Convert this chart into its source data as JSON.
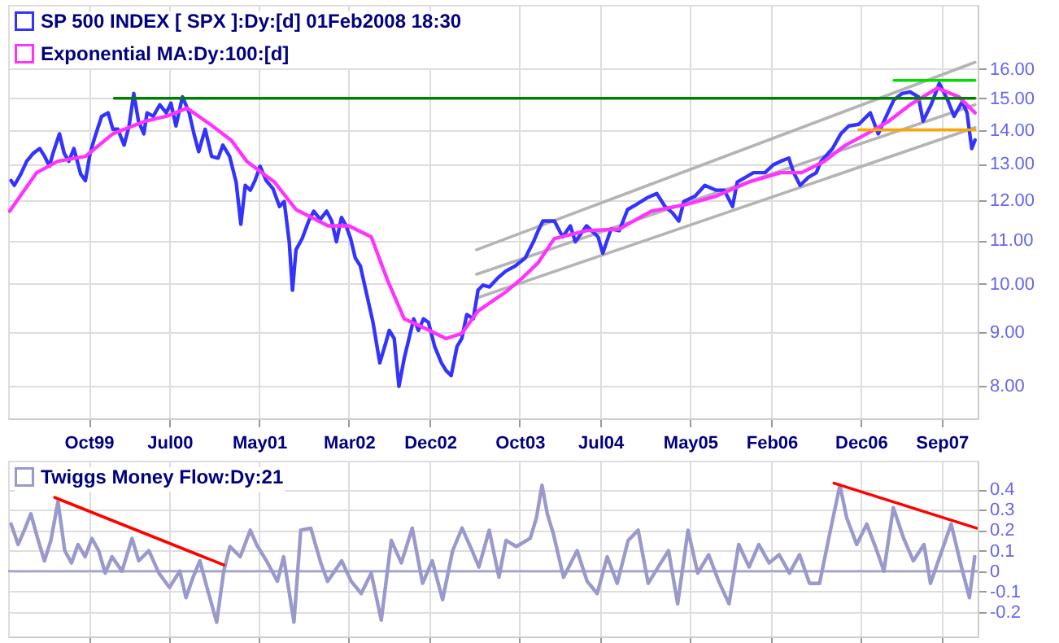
{
  "chart_data": [
    {
      "type": "line",
      "log": "y",
      "grid": true,
      "legend": "top left",
      "xlim": [
        "1999-01-01",
        "2008-01-01"
      ],
      "ylim": [
        7.45,
        18.4
      ],
      "xticks": [
        {
          "value": "1999-10-01",
          "label": "Oct99"
        },
        {
          "value": "2000-07-01",
          "label": "Jul00"
        },
        {
          "value": "2001-05-01",
          "label": "May01"
        },
        {
          "value": "2002-03-01",
          "label": "Mar02"
        },
        {
          "value": "2002-12-01",
          "label": "Dec02"
        },
        {
          "value": "2003-10-01",
          "label": "Oct03"
        },
        {
          "value": "2004-07-01",
          "label": "Jul04"
        },
        {
          "value": "2005-05-01",
          "label": "May05"
        },
        {
          "value": "2006-02-01",
          "label": "Feb06"
        },
        {
          "value": "2006-12-01",
          "label": "Dec06"
        },
        {
          "value": "2007-09-01",
          "label": "Sep07"
        }
      ],
      "yticks": [
        {
          "value": 8,
          "label": "8.00"
        },
        {
          "value": 9,
          "label": "9.00"
        },
        {
          "value": 10,
          "label": "10.00"
        },
        {
          "value": 11,
          "label": "11.00"
        },
        {
          "value": 12,
          "label": "12.00"
        },
        {
          "value": 13,
          "label": "13.00"
        },
        {
          "value": 14,
          "label": "14.00"
        },
        {
          "value": 15,
          "label": "15.00"
        },
        {
          "value": 16,
          "label": "16.00"
        }
      ],
      "series": [
        {
          "type": "line",
          "color": "#b4b4b4",
          "x": [
            "2003-05-08",
            "2007-12-23"
          ],
          "values": [
            10.77,
            16.23
          ]
        },
        {
          "type": "line",
          "color": "#b4b4b4",
          "x": [
            "2003-05-08",
            "2007-12-23"
          ],
          "values": [
            10.21,
            14.79
          ]
        },
        {
          "type": "line",
          "color": "#b4b4b4",
          "x": [
            "2003-05-08",
            "2007-12-23"
          ],
          "values": [
            9.69,
            14.07
          ]
        },
        {
          "type": "line",
          "name": "SP 500 INDEX [ SPX ]:Dy:[d]   01Feb2008 18:30",
          "color": "#3333ff",
          "x": [
            "1999-01-11",
            "1999-01-22",
            "1999-02-13",
            "1999-03-05",
            "1999-03-27",
            "1999-04-18",
            "1999-05-05",
            "1999-05-21",
            "1999-06-02",
            "1999-06-24",
            "1999-07-10",
            "1999-07-26",
            "1999-08-12",
            "1999-09-04",
            "1999-09-20",
            "1999-10-06",
            "1999-10-22",
            "1999-11-14",
            "1999-12-06",
            "1999-12-22",
            "2000-01-08",
            "2000-01-29",
            "2000-02-15",
            "2000-03-02",
            "2000-03-18",
            "2000-04-05",
            "2000-04-16",
            "2000-05-07",
            "2000-05-29",
            "2000-06-20",
            "2000-07-06",
            "2000-07-23",
            "2000-08-14",
            "2000-09-06",
            "2000-09-22",
            "2000-10-08",
            "2000-10-30",
            "2000-11-21",
            "2000-12-13",
            "2000-12-29",
            "2001-01-21",
            "2001-02-12",
            "2001-02-28",
            "2001-03-15",
            "2001-04-01",
            "2001-04-17",
            "2001-05-04",
            "2001-05-25",
            "2001-06-17",
            "2001-07-09",
            "2001-07-25",
            "2001-08-11",
            "2001-08-22",
            "2001-09-03",
            "2001-09-24",
            "2001-10-16",
            "2001-11-02",
            "2001-11-24",
            "2001-12-16",
            "2002-01-02",
            "2002-01-18",
            "2002-02-04",
            "2002-02-20",
            "2002-03-07",
            "2002-03-23",
            "2002-04-09",
            "2002-04-25",
            "2002-05-22",
            "2002-06-14",
            "2002-07-05",
            "2002-07-16",
            "2002-08-02",
            "2002-08-18",
            "2002-09-05",
            "2002-09-21",
            "2002-10-07",
            "2002-10-23",
            "2002-11-09",
            "2002-11-26",
            "2002-12-17",
            "2003-01-09",
            "2003-01-25",
            "2003-02-11",
            "2003-03-03",
            "2003-03-19",
            "2003-04-05",
            "2003-04-27",
            "2003-05-13",
            "2003-05-30",
            "2003-06-21",
            "2003-07-18",
            "2003-08-15",
            "2003-09-17",
            "2003-10-20",
            "2003-11-17",
            "2003-12-03",
            "2003-12-19",
            "2004-01-27",
            "2004-02-24",
            "2004-03-21",
            "2004-04-07",
            "2004-05-15",
            "2004-06-23",
            "2004-07-09",
            "2004-08-06",
            "2004-09-03",
            "2004-10-01",
            "2004-10-28",
            "2004-12-05",
            "2005-01-08",
            "2005-02-05",
            "2005-03-02",
            "2005-03-24",
            "2005-04-10",
            "2005-05-18",
            "2005-06-20",
            "2005-07-28",
            "2005-08-25",
            "2005-09-22",
            "2005-10-08",
            "2005-11-05",
            "2005-12-02",
            "2006-01-10",
            "2006-02-07",
            "2006-03-04",
            "2006-04-01",
            "2006-04-17",
            "2006-05-09",
            "2006-06-06",
            "2006-07-03",
            "2006-07-19",
            "2006-08-27",
            "2006-09-24",
            "2006-10-21",
            "2006-11-24",
            "2007-01-02",
            "2007-01-29",
            "2007-02-25",
            "2007-03-23",
            "2007-04-20",
            "2007-05-17",
            "2007-06-14",
            "2007-06-30",
            "2007-07-27",
            "2007-08-24",
            "2007-09-21",
            "2007-10-13",
            "2007-11-10",
            "2007-11-26",
            "2007-12-12",
            "2007-12-23"
          ],
          "values": [
            12.53,
            12.4,
            12.71,
            13.07,
            13.3,
            13.44,
            13.21,
            12.93,
            13.3,
            13.88,
            13.3,
            13.07,
            13.44,
            12.71,
            12.53,
            13.3,
            13.78,
            14.42,
            14.53,
            14.02,
            14.02,
            13.54,
            14.12,
            15.16,
            14.27,
            13.88,
            14.53,
            14.42,
            14.79,
            14.53,
            14.84,
            14.12,
            15.05,
            14.53,
            13.88,
            13.35,
            14.02,
            13.21,
            13.16,
            13.54,
            13.21,
            12.49,
            11.39,
            12.4,
            12.27,
            12.53,
            12.93,
            12.53,
            12.31,
            11.84,
            11.97,
            10.96,
            9.86,
            10.77,
            11.04,
            11.47,
            11.72,
            11.51,
            11.72,
            11.47,
            10.96,
            11.56,
            11.35,
            11.04,
            10.58,
            10.4,
            9.93,
            9.19,
            8.41,
            8.8,
            9.03,
            8.87,
            7.99,
            8.5,
            8.87,
            9.26,
            9.03,
            9.26,
            9.19,
            8.72,
            8.41,
            8.27,
            8.18,
            8.72,
            8.87,
            9.35,
            9.26,
            9.86,
            9.97,
            9.93,
            10.12,
            10.28,
            10.4,
            10.58,
            10.96,
            11.23,
            11.47,
            11.47,
            11.08,
            11.35,
            10.96,
            11.35,
            11.08,
            10.69,
            11.27,
            11.23,
            11.76,
            11.88,
            12.06,
            12.18,
            11.84,
            11.68,
            11.47,
            11.97,
            12.11,
            12.4,
            12.27,
            12.27,
            11.84,
            12.49,
            12.62,
            12.75,
            12.75,
            12.97,
            13.07,
            13.16,
            12.75,
            12.4,
            12.62,
            12.75,
            13.07,
            13.44,
            13.88,
            14.12,
            14.17,
            14.53,
            13.88,
            14.42,
            14.95,
            15.16,
            15.21,
            15.05,
            14.27,
            14.79,
            15.5,
            14.95,
            14.42,
            14.89,
            14.53,
            13.44,
            13.69
          ]
        },
        {
          "type": "line",
          "name": "Exponential MA:Dy:100:[d]",
          "color": "#ff33ff",
          "x": [
            "1999-01-06",
            "1999-04-08",
            "1999-06-18",
            "1999-09-20",
            "1999-12-22",
            "2000-04-10",
            "2000-06-20",
            "2000-08-30",
            "2000-11-16",
            "2001-01-26",
            "2001-03-20",
            "2001-06-22",
            "2001-09-03",
            "2001-12-21",
            "2002-03-01",
            "2002-05-16",
            "2002-07-10",
            "2002-09-05",
            "2002-11-15",
            "2003-01-25",
            "2003-03-19",
            "2003-05-13",
            "2003-08-15",
            "2003-10-09",
            "2003-12-03",
            "2004-01-27",
            "2004-05-15",
            "2004-09-03",
            "2004-12-21",
            "2005-04-10",
            "2005-07-28",
            "2005-11-16",
            "2006-03-04",
            "2006-05-14",
            "2006-07-30",
            "2006-10-10",
            "2006-12-21",
            "2007-03-06",
            "2007-05-17",
            "2007-08-18",
            "2007-10-29",
            "2007-12-23"
          ],
          "values": [
            11.72,
            12.75,
            13.07,
            13.21,
            13.88,
            14.27,
            14.42,
            14.68,
            14.17,
            13.69,
            13.07,
            12.49,
            11.76,
            11.35,
            11.35,
            11.08,
            10.08,
            9.26,
            9.07,
            8.87,
            8.97,
            9.42,
            9.82,
            10.12,
            10.47,
            11.04,
            11.23,
            11.27,
            11.72,
            11.88,
            12.11,
            12.49,
            12.75,
            12.75,
            13.07,
            13.54,
            13.88,
            14.27,
            14.79,
            15.34,
            15.05,
            14.53
          ]
        },
        {
          "type": "line",
          "color": "#008000",
          "x": [
            "1999-12-27",
            "2007-12-23"
          ],
          "values": [
            15.0,
            15.0
          ]
        },
        {
          "type": "line",
          "color": "#00dd00",
          "x": [
            "2007-03-23",
            "2007-12-23"
          ],
          "values": [
            15.6,
            15.6
          ]
        },
        {
          "type": "line",
          "color": "#ffa500",
          "x": [
            "2006-11-24",
            "2007-12-23"
          ],
          "values": [
            14.0,
            14.0
          ]
        }
      ]
    },
    {
      "type": "line",
      "grid": true,
      "legend": "top left",
      "tick_labels": "y",
      "xlim": [
        "1999-01-01",
        "2008-01-01"
      ],
      "ylim": [
        -0.32,
        0.54
      ],
      "xticks": [
        {
          "value": "1999-10-01",
          "label": null
        },
        {
          "value": "2000-07-01",
          "label": null
        },
        {
          "value": "2001-05-01",
          "label": null
        },
        {
          "value": "2002-03-01",
          "label": null
        },
        {
          "value": "2002-12-01",
          "label": null
        },
        {
          "value": "2003-10-01",
          "label": null
        },
        {
          "value": "2004-07-01",
          "label": null
        },
        {
          "value": "2005-05-01",
          "label": null
        },
        {
          "value": "2006-02-01",
          "label": null
        },
        {
          "value": "2006-12-01",
          "label": null
        },
        {
          "value": "2007-09-01",
          "label": null
        }
      ],
      "yticks": [
        -0.2,
        -0.1,
        0,
        0.1,
        0.2,
        0.3,
        0.4
      ],
      "ref_lines": [
        {
          "axis": "y",
          "value": 0,
          "color": "#9999cc"
        }
      ],
      "series": [
        {
          "type": "line",
          "name": "Twiggs Money Flow:Dy:21",
          "color": "#9999cc",
          "x": [
            "1999-01-11",
            "1999-02-04",
            "1999-02-25",
            "1999-03-19",
            "1999-04-11",
            "1999-05-04",
            "1999-05-26",
            "1999-06-19",
            "1999-07-12",
            "1999-08-04",
            "1999-08-26",
            "1999-09-19",
            "1999-10-12",
            "1999-11-04",
            "1999-11-26",
            "1999-12-19",
            "2000-01-22",
            "2000-02-25",
            "2000-03-19",
            "2000-04-22",
            "2000-05-26",
            "2000-07-01",
            "2000-08-05",
            "2000-08-26",
            "2000-09-19",
            "2000-10-12",
            "2000-11-05",
            "2000-12-08",
            "2001-01-01",
            "2001-01-22",
            "2001-02-26",
            "2001-04-01",
            "2001-04-22",
            "2001-05-26",
            "2001-07-02",
            "2001-07-23",
            "2001-08-27",
            "2001-09-19",
            "2001-10-23",
            "2001-11-26",
            "2001-12-19",
            "2002-02-05",
            "2002-03-09",
            "2002-04-12",
            "2002-05-16",
            "2002-06-19",
            "2002-07-23",
            "2002-08-26",
            "2002-10-02",
            "2002-11-06",
            "2002-12-09",
            "2003-01-13",
            "2003-02-16",
            "2003-03-20",
            "2003-04-23",
            "2003-05-16",
            "2003-06-20",
            "2003-07-23",
            "2003-08-16",
            "2003-09-20",
            "2003-11-06",
            "2003-11-27",
            "2003-12-16",
            "2004-01-03",
            "2004-01-24",
            "2004-02-27",
            "2004-04-13",
            "2004-05-17",
            "2004-06-20",
            "2004-07-24",
            "2004-08-27",
            "2004-10-03",
            "2004-11-06",
            "2004-12-10",
            "2005-01-13",
            "2005-02-17",
            "2005-03-20",
            "2005-04-24",
            "2005-05-27",
            "2005-07-03",
            "2005-08-06",
            "2005-09-10",
            "2005-10-13",
            "2005-11-17",
            "2005-12-20",
            "2006-01-24",
            "2006-02-27",
            "2006-04-03",
            "2006-05-07",
            "2006-06-10",
            "2006-07-14",
            "2006-08-17",
            "2006-09-21",
            "2006-10-14",
            "2006-11-17",
            "2006-12-21",
            "2007-01-24",
            "2007-02-17",
            "2007-03-21",
            "2007-04-25",
            "2007-05-28",
            "2007-07-03",
            "2007-07-25",
            "2007-08-28",
            "2007-10-03",
            "2007-11-07",
            "2007-12-04",
            "2007-12-22"
          ],
          "values": [
            0.23,
            0.13,
            0.2,
            0.28,
            0.16,
            0.05,
            0.15,
            0.34,
            0.1,
            0.04,
            0.13,
            0.07,
            0.16,
            0.1,
            -0.01,
            0.07,
            0.0,
            0.16,
            0.05,
            0.1,
            -0.01,
            -0.08,
            0.0,
            -0.13,
            -0.03,
            0.05,
            -0.08,
            -0.25,
            0.0,
            0.12,
            0.07,
            0.2,
            0.13,
            0.05,
            -0.05,
            0.07,
            -0.25,
            0.2,
            0.21,
            0.04,
            -0.05,
            0.05,
            -0.05,
            -0.11,
            -0.01,
            -0.24,
            0.15,
            0.04,
            0.21,
            -0.06,
            0.05,
            -0.14,
            0.1,
            0.21,
            0.1,
            0.02,
            0.2,
            -0.03,
            0.15,
            0.12,
            0.16,
            0.26,
            0.42,
            0.28,
            0.18,
            -0.03,
            0.1,
            -0.05,
            -0.11,
            0.07,
            -0.06,
            0.15,
            0.2,
            -0.06,
            0.02,
            0.1,
            -0.16,
            0.2,
            -0.01,
            0.08,
            -0.05,
            -0.16,
            0.13,
            0.02,
            0.13,
            0.04,
            0.08,
            -0.01,
            0.08,
            -0.06,
            -0.06,
            0.18,
            0.42,
            0.26,
            0.13,
            0.23,
            0.1,
            0.0,
            0.31,
            0.16,
            0.05,
            0.13,
            -0.06,
            0.08,
            0.23,
            0.02,
            -0.13,
            0.07
          ]
        },
        {
          "type": "line",
          "color": "#ff0000",
          "x": [
            "1999-06-08",
            "2001-01-01"
          ],
          "values": [
            0.36,
            0.03
          ]
        },
        {
          "type": "line",
          "color": "#ff0000",
          "x": [
            "2006-09-01",
            "2007-12-28"
          ],
          "values": [
            0.43,
            0.21
          ]
        }
      ]
    }
  ]
}
